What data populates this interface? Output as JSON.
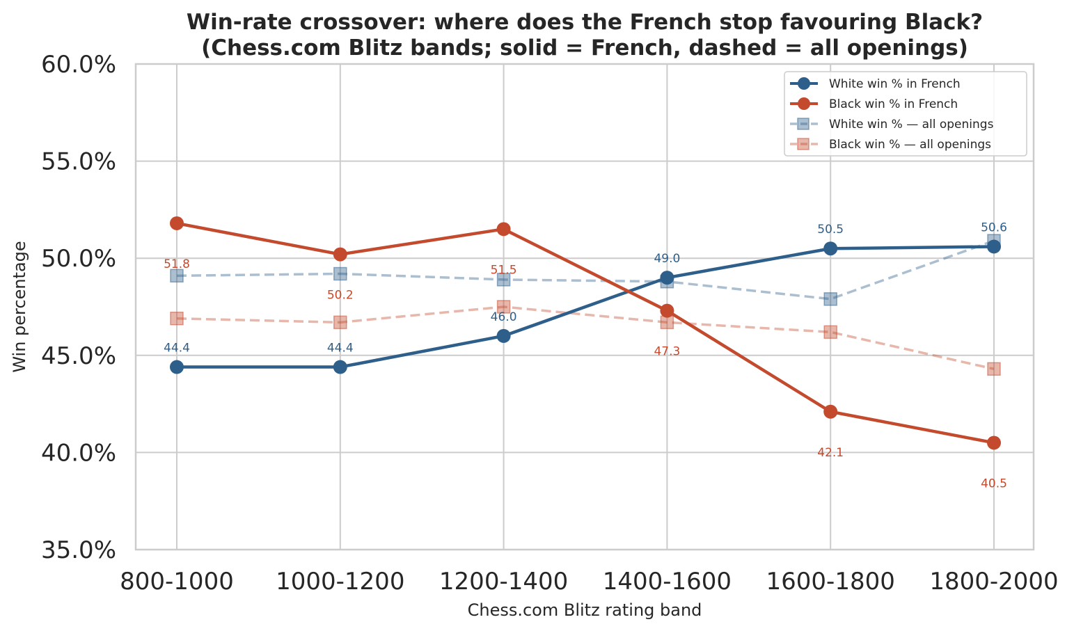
{
  "chart_data": {
    "type": "line",
    "title": "Win-rate crossover: where does the French stop favouring Black?",
    "subtitle": "(Chess.com Blitz bands; solid = French, dashed = all openings)",
    "xlabel": "Chess.com Blitz rating band",
    "ylabel": "Win percentage",
    "categories": [
      "800-1000",
      "1000-1200",
      "1200-1400",
      "1400-1600",
      "1600-1800",
      "1800-2000"
    ],
    "ylim": [
      35,
      60
    ],
    "yticks": [
      35,
      40,
      45,
      50,
      55,
      60
    ],
    "ytick_labels": [
      "35.0%",
      "40.0%",
      "45.0%",
      "50.0%",
      "55.0%",
      "60.0%"
    ],
    "grid": true,
    "legend_position": "top-right",
    "series": [
      {
        "name": "White win % in French",
        "values": [
          44.4,
          44.4,
          46.0,
          49.0,
          50.5,
          50.6
        ],
        "data_labels": [
          "44.4",
          "44.4",
          "46.0",
          "49.0",
          "50.5",
          "50.6"
        ],
        "color": "#2e5f8a",
        "style": "solid",
        "marker": "circle"
      },
      {
        "name": "Black win % in French",
        "values": [
          51.8,
          50.2,
          51.5,
          47.3,
          42.1,
          40.5
        ],
        "data_labels": [
          "51.8",
          "50.2",
          "51.5",
          "47.3",
          "42.1",
          "40.5"
        ],
        "color": "#c44a2e",
        "style": "solid",
        "marker": "circle"
      },
      {
        "name": "White win % — all openings",
        "values": [
          49.1,
          49.2,
          48.9,
          48.8,
          47.9,
          50.9
        ],
        "color": "#2e5f8a",
        "style": "dashed",
        "marker": "square",
        "opacity": 0.4
      },
      {
        "name": "Black win % — all openings",
        "values": [
          46.9,
          46.7,
          47.5,
          46.7,
          46.2,
          44.3
        ],
        "color": "#c44a2e",
        "style": "dashed",
        "marker": "square",
        "opacity": 0.4
      }
    ]
  }
}
